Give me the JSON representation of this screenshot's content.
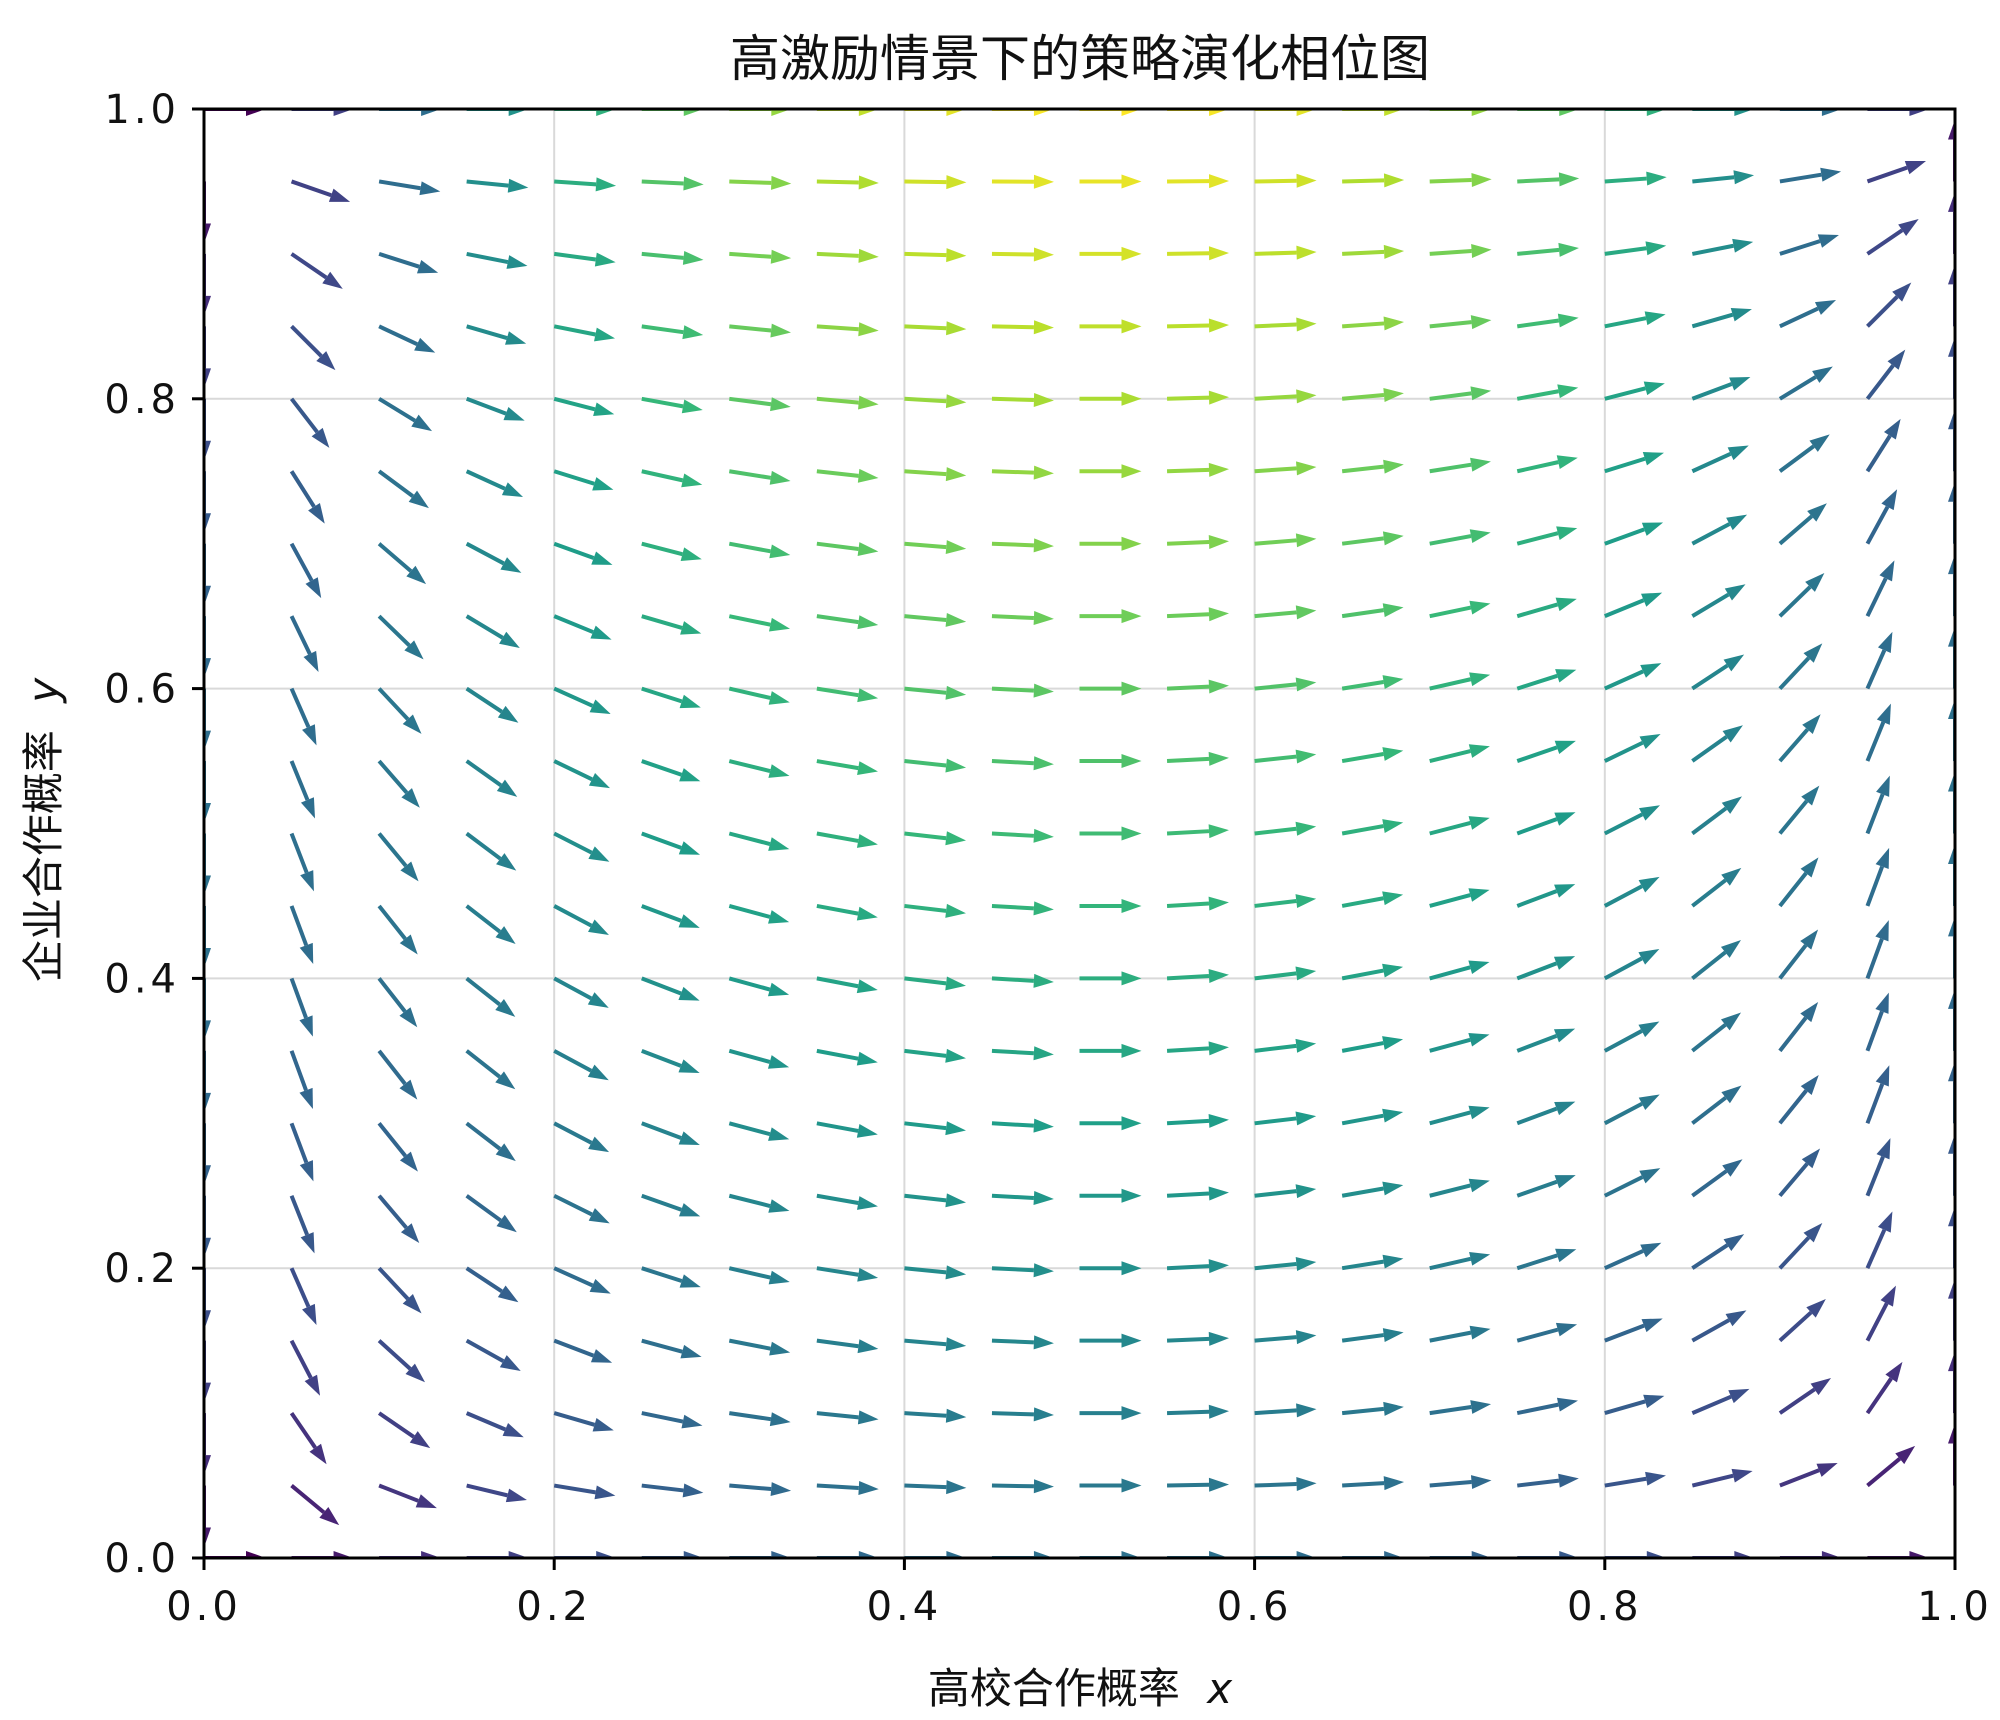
{
  "chart_data": {
    "type": "quiver",
    "title": "高激励情景下的策略演化相位图",
    "xlabel": "高校合作概率",
    "xlabel_var": "x",
    "ylabel": "企业合作概率",
    "ylabel_var": "y",
    "xlim": [
      0,
      1
    ],
    "ylim": [
      0,
      1
    ],
    "xticks": [
      "0.0",
      "0.2",
      "0.4",
      "0.6",
      "0.8",
      "1.0"
    ],
    "yticks": [
      "0.0",
      "0.2",
      "0.4",
      "0.6",
      "0.8",
      "1.0"
    ],
    "grid": true,
    "colormap": "viridis",
    "field": {
      "grid_points": 21,
      "dx": "x*(1-x)*(0.5*y+0.3)",
      "dy": "y*(1-y)*(0.6*x-0.3)"
    }
  }
}
